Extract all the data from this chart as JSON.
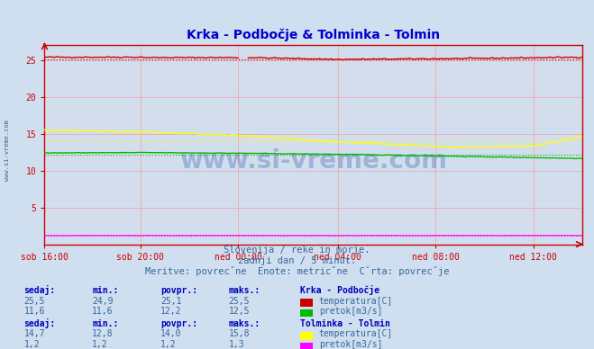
{
  "title": "Krka - Podbočje & Tolminka - Tolmin",
  "title_color": "#0000cc",
  "bg_color": "#d0dff0",
  "plot_bg_color": "#d0dff0",
  "grid_color_major": "#ff9999",
  "grid_color_minor": "#ffcccc",
  "axis_color": "#cc0000",
  "xlabel_color": "#336699",
  "text_color": "#336699",
  "subtitle1": "Slovenija / reke in morje.",
  "subtitle2": "zadnji dan / 5 minut.",
  "subtitle3": "Meritve: povrečne  Enote: metrične  Črta: povrečje",
  "x_labels": [
    "sob 16:00",
    "sob 20:00",
    "ned 00:00",
    "ned 04:00",
    "ned 08:00",
    "ned 12:00"
  ],
  "x_ticks_frac": [
    0.0,
    0.1818,
    0.3636,
    0.5455,
    0.7273,
    0.9091
  ],
  "n_points": 265,
  "ylim": [
    0,
    27
  ],
  "yticks": [
    5,
    10,
    15,
    20,
    25
  ],
  "krka_temp_min": 24.9,
  "krka_temp_max": 25.5,
  "krka_temp_avg": 25.1,
  "krka_temp_now": 25.5,
  "krka_flow_min": 11.6,
  "krka_flow_max": 12.5,
  "krka_flow_avg": 12.2,
  "krka_flow_now": 11.6,
  "tolminka_temp_min": 12.8,
  "tolminka_temp_max": 15.8,
  "tolminka_temp_avg": 14.0,
  "tolminka_temp_now": 14.7,
  "tolminka_flow_min": 1.2,
  "tolminka_flow_max": 1.3,
  "tolminka_flow_avg": 1.2,
  "tolminka_flow_now": 1.2,
  "color_krka_temp": "#cc0000",
  "color_krka_flow": "#00bb00",
  "color_tolminka_temp": "#ffff00",
  "color_tolminka_flow": "#ff00ff",
  "watermark": "www.si-vreme.com",
  "watermark_color": "#2255aa",
  "table_header_color": "#0000bb",
  "table_value_color": "#336699",
  "sidebar_text": "www.si-vreme.com"
}
